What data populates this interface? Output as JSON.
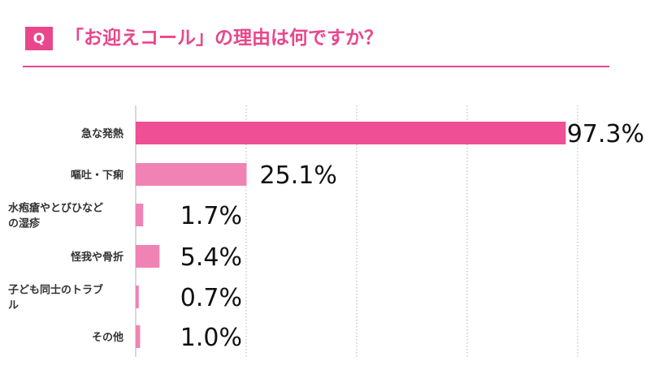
{
  "header": {
    "badge": "Q",
    "question": "「お迎えコール」の理由は何ですか？"
  },
  "colors": {
    "accent": "#e9478c",
    "bar_dark": "#ef4f94",
    "bar_light": "#f083b4",
    "grid": "#b0b0b0",
    "label": "#333333",
    "value": "#111111"
  },
  "chart_data": {
    "type": "bar",
    "orientation": "horizontal",
    "title": "",
    "xlabel": "",
    "ylabel": "",
    "xlim": [
      0,
      100
    ],
    "grid": true,
    "legend": "none",
    "categories": [
      [
        "急な発熱"
      ],
      [
        "嘔吐・下痢"
      ],
      [
        "水疱瘡やとびひなど",
        "の湿疹"
      ],
      [
        "怪我や骨折"
      ],
      [
        "子ども同士のトラブ",
        "ル"
      ],
      [
        "その他"
      ]
    ],
    "values": [
      97.3,
      25.1,
      1.7,
      5.4,
      0.7,
      1.0
    ],
    "value_labels": [
      "97.3%",
      "25.1%",
      "1.7%",
      "5.4%",
      "0.7%",
      "1.0%"
    ]
  }
}
